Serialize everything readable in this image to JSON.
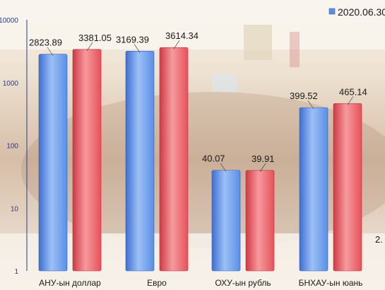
{
  "chart_data": {
    "type": "bar",
    "scale": "log",
    "ylim": [
      1,
      10000
    ],
    "y_ticks": [
      "1",
      "10",
      "100",
      "1000",
      "10000"
    ],
    "categories": [
      "АНУ-ын доллар",
      "Евро",
      "ОХУ-ын рубль",
      "БНХАУ-ын юань"
    ],
    "series": [
      {
        "name": "2020.06.30",
        "color": "#5b8fe6",
        "values": [
          2823.89,
          3169.39,
          40.07,
          399.52
        ],
        "labels": [
          "2823.89",
          "3169.39",
          "40.07",
          "399.52"
        ]
      },
      {
        "name": "",
        "color": "#e8515a",
        "values": [
          3381.05,
          3614.34,
          39.91,
          465.14
        ],
        "labels": [
          "3381.05",
          "3614.34",
          "39.91",
          "465.14"
        ]
      }
    ],
    "cropped_text": "2.",
    "legend_position": "top-right",
    "grid": false
  }
}
